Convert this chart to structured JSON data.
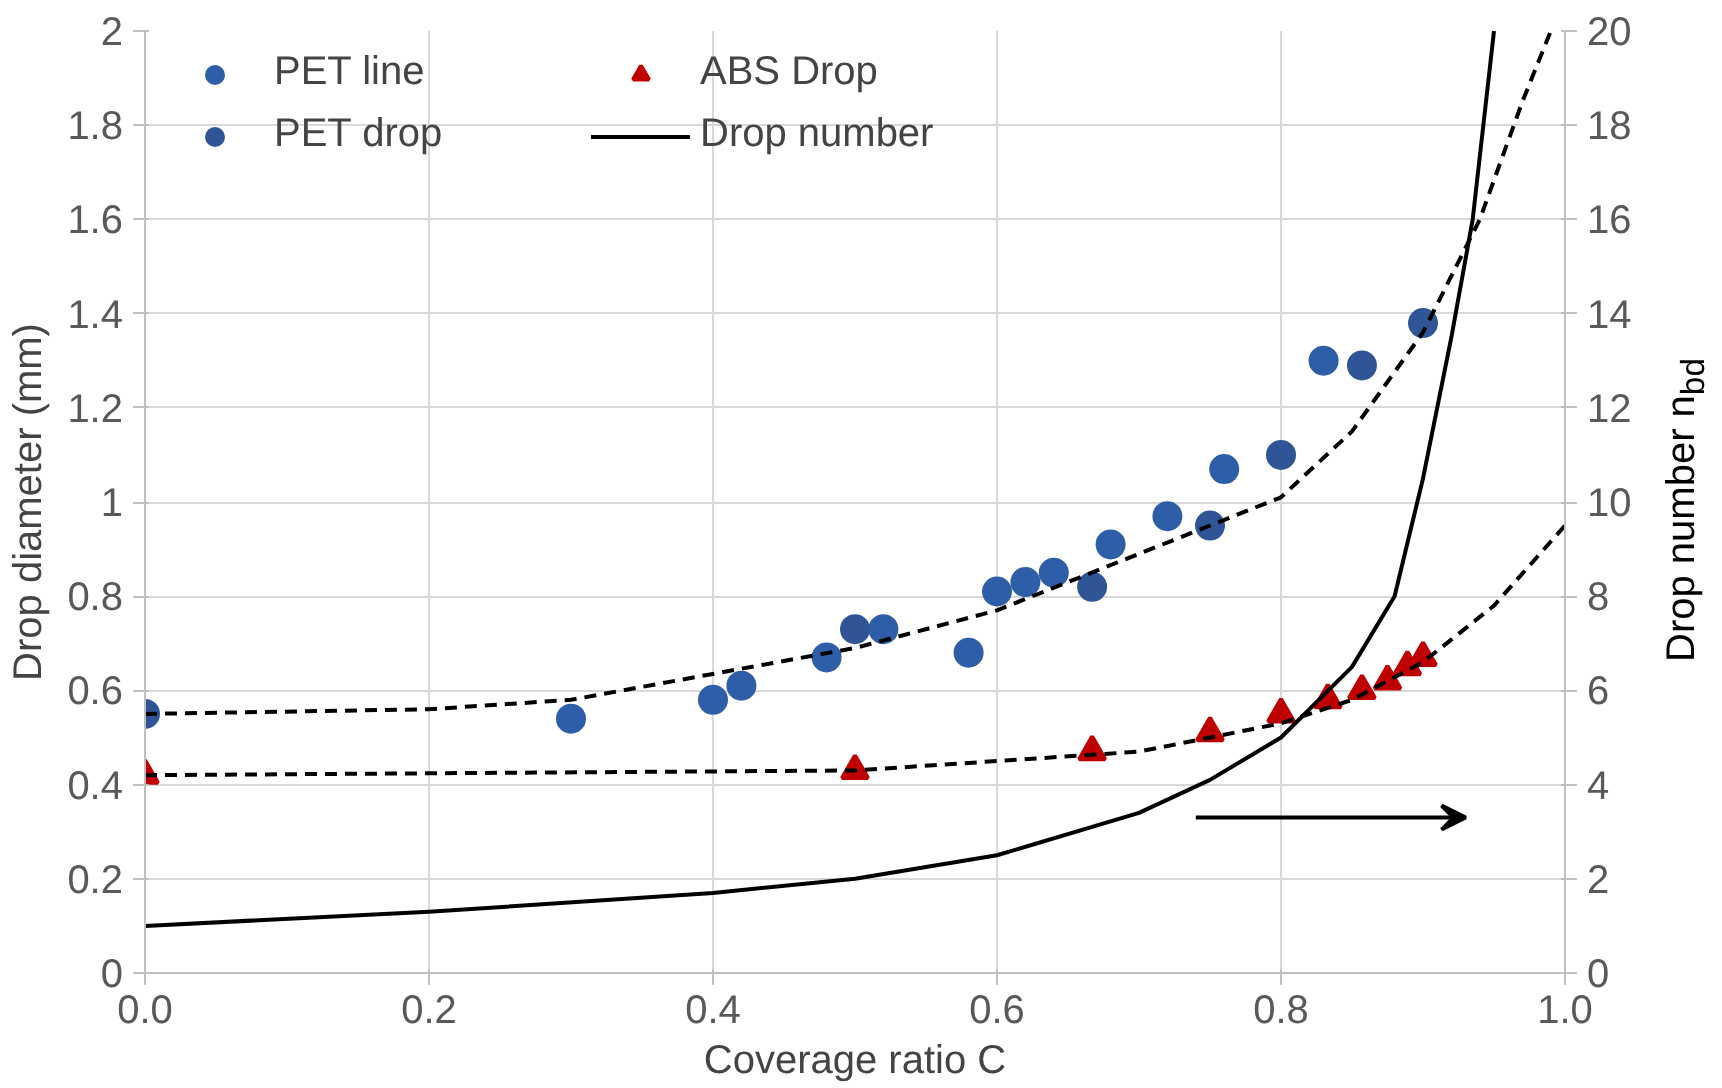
{
  "chart_data": {
    "type": "scatter",
    "xlabel": "Coverage ratio C",
    "ylabel": "Drop diameter (mm)",
    "y2label": "Drop number n$_{bd}$",
    "xlim": [
      0,
      1
    ],
    "ylim": [
      0,
      2
    ],
    "y2lim": [
      0,
      20
    ],
    "xticks": [
      {
        "value": 0,
        "label": "0.0"
      },
      0.2,
      0.4,
      0.6,
      0.8,
      {
        "value": 1,
        "label": "1.0"
      }
    ],
    "yticks": [
      0,
      0.2,
      0.4,
      0.6,
      0.8,
      1,
      1.2,
      1.4,
      1.6,
      1.8,
      2
    ],
    "y2ticks": [
      0,
      2,
      4,
      6,
      8,
      10,
      12,
      14,
      16,
      18,
      20
    ],
    "grid": true,
    "legend": "top left",
    "series": [
      {
        "name": "PET line",
        "marker": "circle",
        "color": "#2f5ea8",
        "x": [
          0.3,
          0.4,
          0.42,
          0.48,
          0.52,
          0.58,
          0.6,
          0.62,
          0.64,
          0.68,
          0.72,
          0.76,
          0.83
        ],
        "values": [
          0.54,
          0.58,
          0.61,
          0.67,
          0.73,
          0.68,
          0.81,
          0.83,
          0.85,
          0.91,
          0.97,
          1.07,
          1.3
        ]
      },
      {
        "name": "PET drop",
        "marker": "circle",
        "color": "#2f5597",
        "x": [
          0,
          0.5,
          0.667,
          0.75,
          0.8,
          0.857,
          0.9
        ],
        "values": [
          0.55,
          0.73,
          0.82,
          0.95,
          1.1,
          1.29,
          1.38
        ]
      },
      {
        "name": "ABS Drop",
        "marker": "triangle",
        "color": "#c00000",
        "x": [
          0,
          0.5,
          0.667,
          0.75,
          0.8,
          0.833,
          0.857,
          0.875,
          0.889,
          0.9
        ],
        "values": [
          0.42,
          0.43,
          0.47,
          0.51,
          0.55,
          0.58,
          0.6,
          0.62,
          0.65,
          0.67
        ]
      },
      {
        "name": "Drop number",
        "type": "line",
        "axis": "y2",
        "line_style": "solid",
        "color": "#000000",
        "x": [
          0,
          0.2,
          0.4,
          0.5,
          0.6,
          0.7,
          0.75,
          0.8,
          0.85,
          0.88,
          0.9,
          0.92,
          0.935,
          0.95
        ],
        "values": [
          1.0,
          1.3,
          1.7,
          2.0,
          2.5,
          3.4,
          4.1,
          5.0,
          6.5,
          8.0,
          10.5,
          13.5,
          16.0,
          20.0
        ]
      },
      {
        "type": "line",
        "line_style": "dashed",
        "color": "#000000",
        "x": [
          0,
          0.2,
          0.3,
          0.5,
          0.6,
          0.7,
          0.8,
          0.85,
          0.9,
          0.94,
          0.97,
          0.99
        ],
        "values": [
          0.55,
          0.56,
          0.58,
          0.69,
          0.77,
          0.89,
          1.01,
          1.15,
          1.36,
          1.6,
          1.85,
          2.0
        ]
      },
      {
        "type": "line",
        "line_style": "dashed",
        "color": "#000000",
        "x": [
          0,
          0.5,
          0.7,
          0.8,
          0.85,
          0.9,
          0.95,
          1.0
        ],
        "values": [
          0.42,
          0.43,
          0.47,
          0.53,
          0.58,
          0.66,
          0.78,
          0.95
        ]
      }
    ]
  }
}
